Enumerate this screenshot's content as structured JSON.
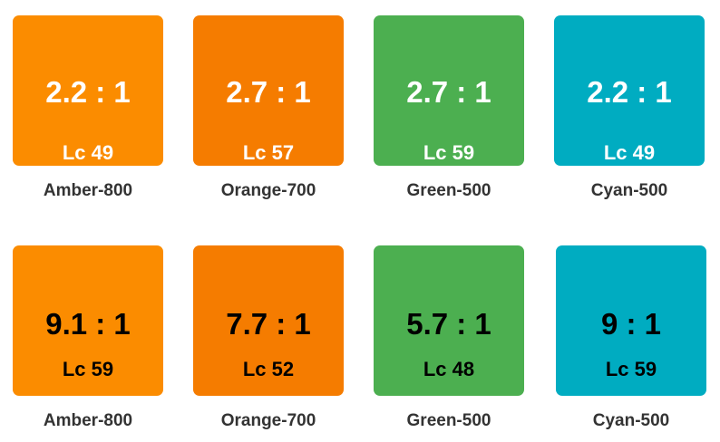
{
  "colors": {
    "amber": "#fb8c00",
    "orange": "#f57c00",
    "green": "#4caf50",
    "cyan": "#00acc1",
    "light_text": "#ffffff",
    "dark_text": "#000000",
    "label": "#333333"
  },
  "row1": [
    {
      "ratio": "2.2 : 1",
      "lc": "Lc 49",
      "name": "Amber-800"
    },
    {
      "ratio": "2.7 : 1",
      "lc": "Lc 57",
      "name": "Orange-700"
    },
    {
      "ratio": "2.7 : 1",
      "lc": "Lc 59",
      "name": "Green-500"
    },
    {
      "ratio": "2.2 : 1",
      "lc": "Lc 49",
      "name": "Cyan-500"
    }
  ],
  "row2": [
    {
      "ratio": "9.1 : 1",
      "lc": "Lc 59",
      "name": "Amber-800"
    },
    {
      "ratio": "7.7 : 1",
      "lc": "Lc 52",
      "name": "Orange-700"
    },
    {
      "ratio": "5.7 : 1",
      "lc": "Lc 48",
      "name": "Green-500"
    },
    {
      "ratio": "9 : 1",
      "lc": "Lc 59",
      "name": "Cyan-500"
    }
  ]
}
